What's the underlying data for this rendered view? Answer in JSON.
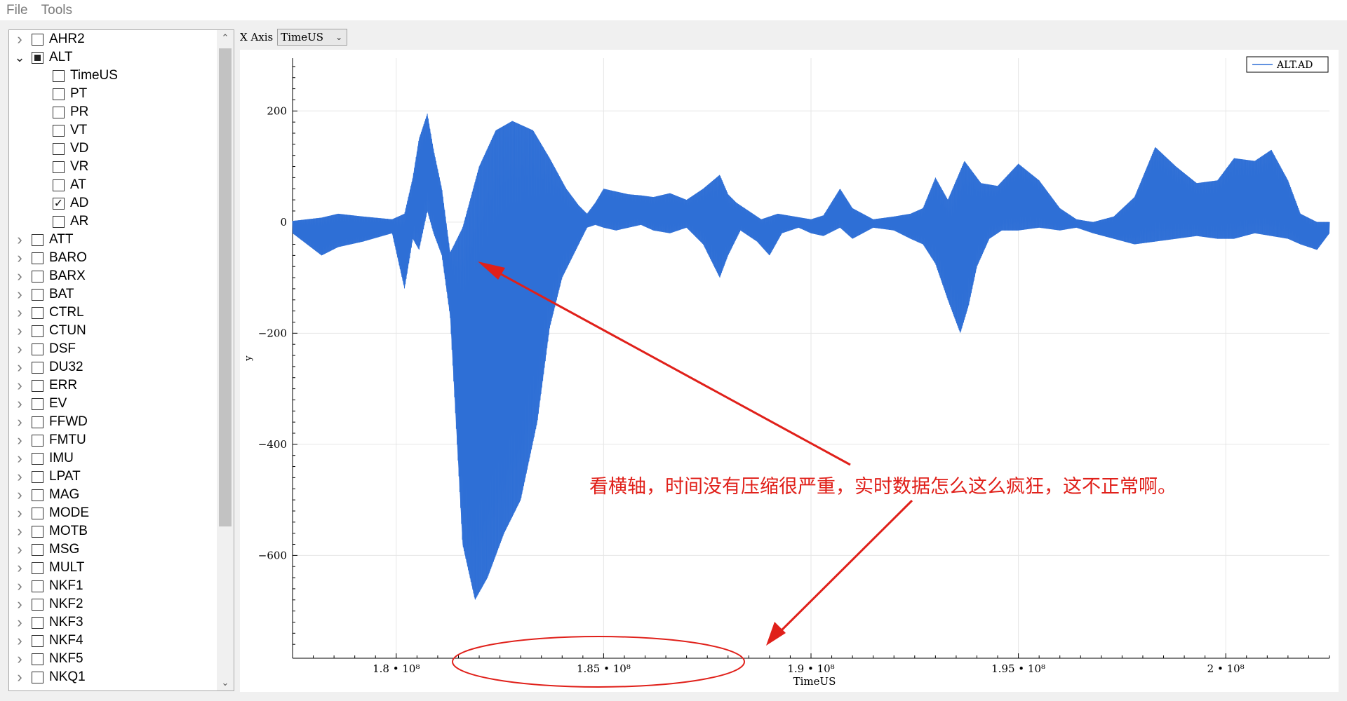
{
  "menu": {
    "file": "File",
    "tools": "Tools"
  },
  "xaxis": {
    "label": "X Axis",
    "selected": "TimeUS"
  },
  "tree": {
    "items": [
      {
        "label": "AHR2",
        "level": 0,
        "expand": "collapsed",
        "state": "unchecked"
      },
      {
        "label": "ALT",
        "level": 0,
        "expand": "expanded",
        "state": "partial"
      },
      {
        "label": "TimeUS",
        "level": 1,
        "expand": "none",
        "state": "unchecked"
      },
      {
        "label": "PT",
        "level": 1,
        "expand": "none",
        "state": "unchecked"
      },
      {
        "label": "PR",
        "level": 1,
        "expand": "none",
        "state": "unchecked"
      },
      {
        "label": "VT",
        "level": 1,
        "expand": "none",
        "state": "unchecked"
      },
      {
        "label": "VD",
        "level": 1,
        "expand": "none",
        "state": "unchecked"
      },
      {
        "label": "VR",
        "level": 1,
        "expand": "none",
        "state": "unchecked"
      },
      {
        "label": "AT",
        "level": 1,
        "expand": "none",
        "state": "unchecked"
      },
      {
        "label": "AD",
        "level": 1,
        "expand": "none",
        "state": "checked"
      },
      {
        "label": "AR",
        "level": 1,
        "expand": "none",
        "state": "unchecked"
      },
      {
        "label": "ATT",
        "level": 0,
        "expand": "collapsed",
        "state": "unchecked"
      },
      {
        "label": "BARO",
        "level": 0,
        "expand": "collapsed",
        "state": "unchecked"
      },
      {
        "label": "BARX",
        "level": 0,
        "expand": "collapsed",
        "state": "unchecked"
      },
      {
        "label": "BAT",
        "level": 0,
        "expand": "collapsed",
        "state": "unchecked"
      },
      {
        "label": "CTRL",
        "level": 0,
        "expand": "collapsed",
        "state": "unchecked"
      },
      {
        "label": "CTUN",
        "level": 0,
        "expand": "collapsed",
        "state": "unchecked"
      },
      {
        "label": "DSF",
        "level": 0,
        "expand": "collapsed",
        "state": "unchecked"
      },
      {
        "label": "DU32",
        "level": 0,
        "expand": "collapsed",
        "state": "unchecked"
      },
      {
        "label": "ERR",
        "level": 0,
        "expand": "collapsed",
        "state": "unchecked"
      },
      {
        "label": "EV",
        "level": 0,
        "expand": "collapsed",
        "state": "unchecked"
      },
      {
        "label": "FFWD",
        "level": 0,
        "expand": "collapsed",
        "state": "unchecked"
      },
      {
        "label": "FMTU",
        "level": 0,
        "expand": "collapsed",
        "state": "unchecked"
      },
      {
        "label": "IMU",
        "level": 0,
        "expand": "collapsed",
        "state": "unchecked"
      },
      {
        "label": "LPAT",
        "level": 0,
        "expand": "collapsed",
        "state": "unchecked"
      },
      {
        "label": "MAG",
        "level": 0,
        "expand": "collapsed",
        "state": "unchecked"
      },
      {
        "label": "MODE",
        "level": 0,
        "expand": "collapsed",
        "state": "unchecked"
      },
      {
        "label": "MOTB",
        "level": 0,
        "expand": "collapsed",
        "state": "unchecked"
      },
      {
        "label": "MSG",
        "level": 0,
        "expand": "collapsed",
        "state": "unchecked"
      },
      {
        "label": "MULT",
        "level": 0,
        "expand": "collapsed",
        "state": "unchecked"
      },
      {
        "label": "NKF1",
        "level": 0,
        "expand": "collapsed",
        "state": "unchecked"
      },
      {
        "label": "NKF2",
        "level": 0,
        "expand": "collapsed",
        "state": "unchecked"
      },
      {
        "label": "NKF3",
        "level": 0,
        "expand": "collapsed",
        "state": "unchecked"
      },
      {
        "label": "NKF4",
        "level": 0,
        "expand": "collapsed",
        "state": "unchecked"
      },
      {
        "label": "NKF5",
        "level": 0,
        "expand": "collapsed",
        "state": "unchecked"
      },
      {
        "label": "NKQ1",
        "level": 0,
        "expand": "collapsed",
        "state": "unchecked"
      }
    ]
  },
  "annotation": {
    "text": "看横轴，时间没有压缩很严重，实时数据怎么这么疯狂，这不正常啊。",
    "color": "#e0201a"
  },
  "chart_data": {
    "type": "line",
    "xlabel": "TimeUS",
    "ylabel": "y",
    "xlim": [
      177500000,
      202500000
    ],
    "ylim": [
      -785,
      295
    ],
    "xticks": [
      180000000,
      185000000,
      190000000,
      195000000,
      200000000
    ],
    "xtick_labels": [
      "1.8 • 10⁸",
      "1.85 • 10⁸",
      "1.9 • 10⁸",
      "1.95 • 10⁸",
      "2 • 10⁸"
    ],
    "yticks": [
      -600,
      -400,
      -200,
      0,
      200
    ],
    "ytick_labels": [
      "−600",
      "−400",
      "−200",
      "0",
      "200"
    ],
    "grid": true,
    "legend_position": "top-right",
    "series": [
      {
        "name": "ALT.AD",
        "color": "#2f6fd6",
        "x_start": 177500000,
        "x_end": 202500000,
        "upper": [
          [
            177.5,
            2
          ],
          [
            178.2,
            8
          ],
          [
            178.6,
            15
          ],
          [
            179.2,
            10
          ],
          [
            179.9,
            5
          ],
          [
            180.2,
            15
          ],
          [
            180.4,
            80
          ],
          [
            180.55,
            150
          ],
          [
            180.75,
            195
          ],
          [
            180.9,
            130
          ],
          [
            181.1,
            60
          ],
          [
            181.3,
            -55
          ],
          [
            181.6,
            -10
          ],
          [
            182.0,
            100
          ],
          [
            182.4,
            165
          ],
          [
            182.8,
            182
          ],
          [
            183.3,
            165
          ],
          [
            183.7,
            115
          ],
          [
            184.1,
            60
          ],
          [
            184.4,
            30
          ],
          [
            184.6,
            15
          ],
          [
            184.8,
            35
          ],
          [
            185.0,
            60
          ],
          [
            185.3,
            55
          ],
          [
            185.6,
            50
          ],
          [
            185.9,
            48
          ],
          [
            186.2,
            45
          ],
          [
            186.6,
            52
          ],
          [
            187.0,
            40
          ],
          [
            187.4,
            60
          ],
          [
            187.8,
            85
          ],
          [
            188.0,
            50
          ],
          [
            188.2,
            35
          ],
          [
            188.5,
            20
          ],
          [
            188.8,
            5
          ],
          [
            189.2,
            15
          ],
          [
            189.6,
            10
          ],
          [
            190.0,
            5
          ],
          [
            190.3,
            12
          ],
          [
            190.7,
            60
          ],
          [
            191.0,
            25
          ],
          [
            191.5,
            5
          ],
          [
            192.0,
            10
          ],
          [
            192.4,
            15
          ],
          [
            192.7,
            25
          ],
          [
            193.0,
            80
          ],
          [
            193.3,
            40
          ],
          [
            193.7,
            110
          ],
          [
            194.1,
            70
          ],
          [
            194.5,
            65
          ],
          [
            195.0,
            105
          ],
          [
            195.5,
            75
          ],
          [
            196.0,
            25
          ],
          [
            196.4,
            5
          ],
          [
            196.8,
            0
          ],
          [
            197.3,
            10
          ],
          [
            197.8,
            45
          ],
          [
            198.3,
            135
          ],
          [
            198.8,
            100
          ],
          [
            199.3,
            70
          ],
          [
            199.8,
            75
          ],
          [
            200.2,
            115
          ],
          [
            200.7,
            110
          ],
          [
            201.1,
            130
          ],
          [
            201.5,
            75
          ],
          [
            201.8,
            15
          ],
          [
            202.2,
            0
          ],
          [
            202.5,
            0
          ]
        ],
        "lower": [
          [
            177.5,
            -20
          ],
          [
            178.2,
            -60
          ],
          [
            178.6,
            -45
          ],
          [
            179.2,
            -35
          ],
          [
            179.9,
            -20
          ],
          [
            180.2,
            -120
          ],
          [
            180.4,
            -30
          ],
          [
            180.55,
            -50
          ],
          [
            180.75,
            20
          ],
          [
            180.9,
            -20
          ],
          [
            181.1,
            -60
          ],
          [
            181.3,
            -170
          ],
          [
            181.6,
            -580
          ],
          [
            181.9,
            -680
          ],
          [
            182.2,
            -640
          ],
          [
            182.6,
            -560
          ],
          [
            183.0,
            -500
          ],
          [
            183.4,
            -360
          ],
          [
            183.7,
            -190
          ],
          [
            184.0,
            -100
          ],
          [
            184.4,
            -40
          ],
          [
            184.6,
            -10
          ],
          [
            184.8,
            -5
          ],
          [
            185.0,
            -10
          ],
          [
            185.3,
            -15
          ],
          [
            185.6,
            -10
          ],
          [
            185.9,
            -5
          ],
          [
            186.2,
            -15
          ],
          [
            186.6,
            -20
          ],
          [
            187.0,
            -10
          ],
          [
            187.4,
            -40
          ],
          [
            187.8,
            -100
          ],
          [
            188.0,
            -60
          ],
          [
            188.3,
            -15
          ],
          [
            188.7,
            -35
          ],
          [
            189.0,
            -60
          ],
          [
            189.3,
            -20
          ],
          [
            189.7,
            -10
          ],
          [
            190.0,
            -20
          ],
          [
            190.3,
            -25
          ],
          [
            190.7,
            -10
          ],
          [
            191.0,
            -30
          ],
          [
            191.5,
            -10
          ],
          [
            192.0,
            -15
          ],
          [
            192.4,
            -30
          ],
          [
            192.7,
            -40
          ],
          [
            193.0,
            -75
          ],
          [
            193.3,
            -140
          ],
          [
            193.6,
            -200
          ],
          [
            193.8,
            -150
          ],
          [
            194.0,
            -80
          ],
          [
            194.3,
            -30
          ],
          [
            194.6,
            -15
          ],
          [
            195.0,
            -15
          ],
          [
            195.5,
            -10
          ],
          [
            196.0,
            -15
          ],
          [
            196.4,
            -10
          ],
          [
            196.8,
            -20
          ],
          [
            197.3,
            -30
          ],
          [
            197.8,
            -40
          ],
          [
            198.3,
            -35
          ],
          [
            198.8,
            -30
          ],
          [
            199.3,
            -25
          ],
          [
            199.8,
            -30
          ],
          [
            200.2,
            -30
          ],
          [
            200.7,
            -20
          ],
          [
            201.1,
            -25
          ],
          [
            201.5,
            -30
          ],
          [
            201.8,
            -40
          ],
          [
            202.2,
            -50
          ],
          [
            202.5,
            -20
          ]
        ]
      }
    ]
  }
}
